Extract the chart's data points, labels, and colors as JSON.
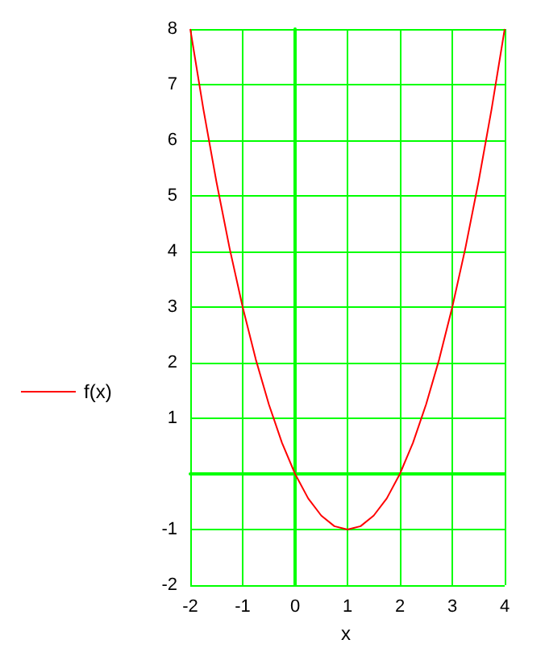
{
  "chart_data": {
    "type": "line",
    "xlabel": "x",
    "x": [
      -2,
      -1.75,
      -1.5,
      -1.25,
      -1,
      -0.75,
      -0.5,
      -0.25,
      0,
      0.25,
      0.5,
      0.75,
      1,
      1.25,
      1.5,
      1.75,
      2,
      2.25,
      2.5,
      2.75,
      3,
      3.25,
      3.5,
      3.75,
      4
    ],
    "series": [
      {
        "name": "f(x)",
        "color": "#ff0000",
        "values": [
          8,
          6.56,
          5.25,
          4.06,
          3,
          2.06,
          1.25,
          0.56,
          0,
          -0.44,
          -0.75,
          -0.94,
          -1,
          -0.94,
          -0.75,
          -0.44,
          0,
          0.56,
          1.25,
          2.06,
          3,
          4.06,
          5.25,
          6.56,
          8
        ]
      }
    ],
    "xlim": [
      -2,
      4
    ],
    "xticks": [
      -2,
      -1,
      0,
      1,
      2,
      3,
      4
    ],
    "ylim": [
      -2,
      8
    ],
    "yticks": [
      -2,
      -1,
      {
        "value": 0,
        "label": null
      },
      1,
      2,
      3,
      4,
      5,
      6,
      7,
      8
    ],
    "grid": true,
    "legend": "left",
    "marker": "none",
    "line_style": "solid"
  }
}
